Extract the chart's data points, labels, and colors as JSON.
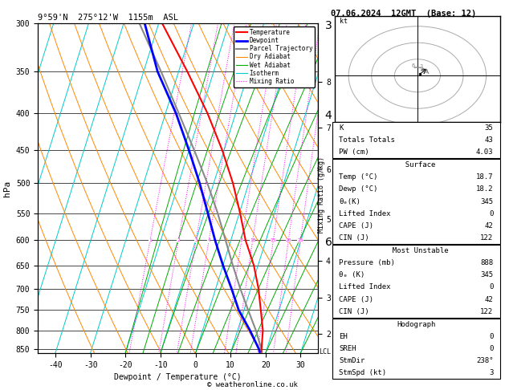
{
  "title_left": "9°59'N  275°12'W  1155m  ASL",
  "title_right": "07.06.2024  12GMT  (Base: 12)",
  "xlabel": "Dewpoint / Temperature (°C)",
  "ylabel_left": "hPa",
  "km_labels": [
    "8",
    "7",
    "6",
    "5",
    "4",
    "3",
    "2"
  ],
  "km_pressures": [
    362,
    418,
    478,
    560,
    640,
    720,
    810
  ],
  "lcl_label": "LCL",
  "lcl_pressure": 857,
  "pressure_ticks": [
    300,
    350,
    400,
    450,
    500,
    550,
    600,
    650,
    700,
    750,
    800,
    850
  ],
  "temp_range": [
    -45,
    35
  ],
  "p_min": 300,
  "p_max": 860,
  "skew": 28,
  "legend_items": [
    {
      "label": "Temperature",
      "color": "#ff0000",
      "lw": 1.5,
      "ls": "-"
    },
    {
      "label": "Dewpoint",
      "color": "#0000ff",
      "lw": 2.0,
      "ls": "-"
    },
    {
      "label": "Parcel Trajectory",
      "color": "#888888",
      "lw": 1.5,
      "ls": "-"
    },
    {
      "label": "Dry Adiabat",
      "color": "#ff8800",
      "lw": 0.8,
      "ls": "-"
    },
    {
      "label": "Wet Adiabat",
      "color": "#00aa00",
      "lw": 0.8,
      "ls": "-"
    },
    {
      "label": "Isotherm",
      "color": "#00cccc",
      "lw": 0.8,
      "ls": "-"
    },
    {
      "label": "Mixing Ratio",
      "color": "#ff00ff",
      "lw": 0.8,
      "ls": ":"
    }
  ],
  "temp_profile": {
    "pressure": [
      857,
      850,
      800,
      750,
      700,
      650,
      600,
      550,
      500,
      450,
      400,
      350,
      300
    ],
    "temp": [
      18.7,
      18.5,
      17.2,
      14.8,
      12.2,
      8.8,
      4.2,
      0.2,
      -4.5,
      -10.5,
      -18.0,
      -27.5,
      -39.0
    ]
  },
  "dewpoint_profile": {
    "pressure": [
      857,
      850,
      800,
      750,
      700,
      650,
      600,
      550,
      500,
      450,
      400,
      350,
      300
    ],
    "dewp": [
      18.2,
      17.8,
      13.5,
      8.5,
      4.5,
      0.0,
      -4.5,
      -9.0,
      -14.0,
      -20.0,
      -27.0,
      -36.0,
      -44.0
    ]
  },
  "parcel_profile": {
    "pressure": [
      857,
      850,
      800,
      750,
      700,
      650,
      600,
      550,
      500,
      450,
      400,
      350,
      300
    ],
    "temp": [
      18.7,
      18.5,
      15.2,
      11.2,
      7.0,
      2.8,
      -1.5,
      -6.2,
      -11.8,
      -18.5,
      -26.2,
      -35.0,
      -45.5
    ]
  },
  "mixing_ratio_values": [
    1,
    2,
    3,
    4,
    8,
    10,
    15,
    20,
    25
  ],
  "surface_temp": 18.7,
  "surface_dewp": 18.2,
  "surface_theta_e": 345,
  "surface_li": 0,
  "surface_cape": 42,
  "surface_cin": 122,
  "mu_pressure": 888,
  "mu_theta_e": 345,
  "mu_li": 0,
  "mu_cape": 42,
  "mu_cin": 122,
  "K_index": 35,
  "totals_totals": 43,
  "PW_cm": 4.03,
  "hodo_EH": 0,
  "hodo_SREH": 0,
  "hodo_StmDir": "238°",
  "hodo_StmSpd": 3,
  "bg_color": "#ffffff"
}
